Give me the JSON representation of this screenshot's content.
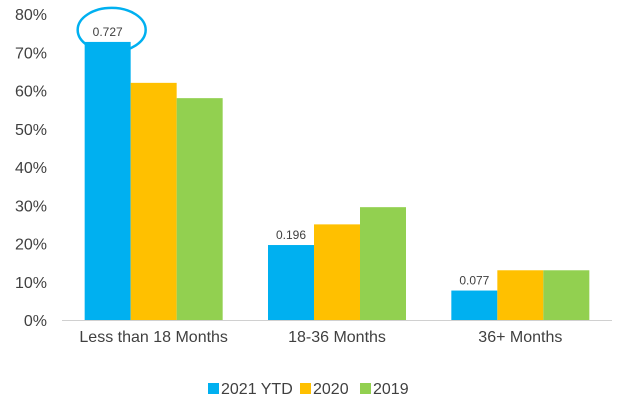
{
  "chart_data": {
    "type": "bar",
    "categories": [
      "Less than 18 Months",
      "18-36 Months",
      "36+ Months"
    ],
    "series": [
      {
        "name": "2021 YTD",
        "values": [
          0.727,
          0.196,
          0.077
        ],
        "color": "#00B0F0"
      },
      {
        "name": "2020",
        "values": [
          0.62,
          0.25,
          0.13
        ],
        "color": "#FFC000"
      },
      {
        "name": "2019",
        "values": [
          0.58,
          0.295,
          0.13
        ],
        "color": "#92D050"
      }
    ],
    "data_labels": {
      "2021 YTD": [
        "0.727",
        "0.196",
        "0.077"
      ]
    },
    "y_ticks": [
      "0%",
      "10%",
      "20%",
      "30%",
      "40%",
      "50%",
      "60%",
      "70%",
      "80%"
    ],
    "ylim": [
      0,
      0.8
    ],
    "grid": false,
    "legend": "bottom",
    "highlight": {
      "series": "2021 YTD",
      "category": "Less than 18 Months",
      "shape": "ellipse",
      "color": "#00B0F0"
    }
  }
}
